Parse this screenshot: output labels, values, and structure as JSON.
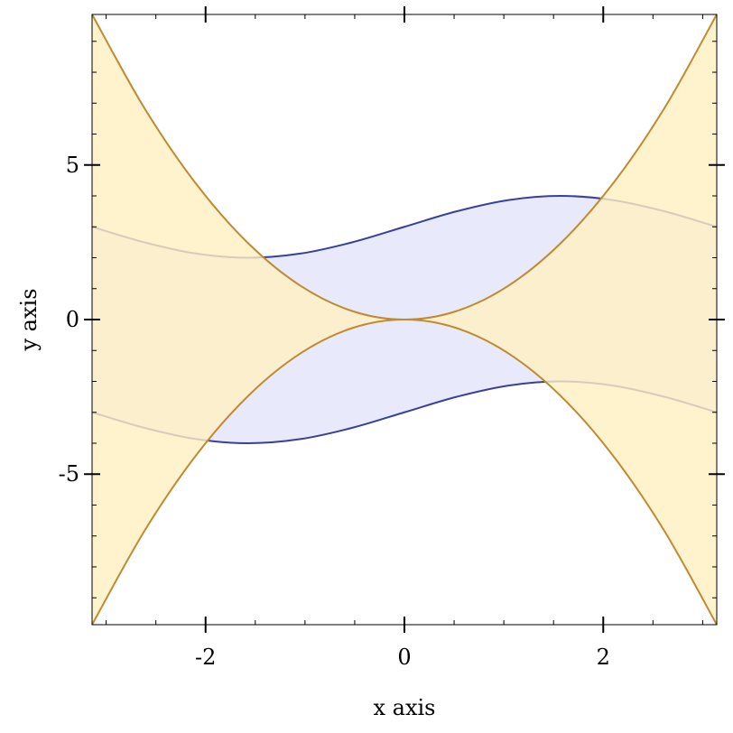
{
  "chart_data": {
    "type": "area",
    "xlabel": "x axis",
    "ylabel": "y axis",
    "xlim": [
      -3.14159,
      3.14159
    ],
    "ylim": [
      -9.8696,
      9.8696
    ],
    "x_ticks": [
      -2,
      0,
      2
    ],
    "x_tick_labels": [
      "-2",
      "0",
      "2"
    ],
    "y_ticks": [
      -5,
      0,
      5
    ],
    "y_tick_labels": [
      "-5",
      "0",
      "5"
    ],
    "grid": false,
    "series": [
      {
        "fill": "#e8eafc",
        "line": "#3a3f9c",
        "upper": [
          [
            -3.1416,
            3.0
          ],
          [
            -2.618,
            2.5
          ],
          [
            -2.0944,
            2.134
          ],
          [
            -1.5708,
            2.0
          ],
          [
            -1.0472,
            2.134
          ],
          [
            -0.5236,
            2.5
          ],
          [
            0.0,
            3.0
          ],
          [
            0.5236,
            3.5
          ],
          [
            1.0472,
            3.866
          ],
          [
            1.5708,
            4.0
          ],
          [
            2.0944,
            3.866
          ],
          [
            2.618,
            3.5
          ],
          [
            3.1416,
            3.0
          ]
        ],
        "lower": [
          [
            -3.1416,
            -3.0
          ],
          [
            -2.618,
            -3.5
          ],
          [
            -2.0944,
            -3.866
          ],
          [
            -1.5708,
            -4.0
          ],
          [
            -1.0472,
            -3.866
          ],
          [
            -0.5236,
            -3.5
          ],
          [
            0.0,
            -3.0
          ],
          [
            0.5236,
            -2.5
          ],
          [
            1.0472,
            -2.134
          ],
          [
            1.5708,
            -2.0
          ],
          [
            2.0944,
            -2.134
          ],
          [
            2.618,
            -2.5
          ],
          [
            3.1416,
            -3.0
          ]
        ]
      },
      {
        "fill": "#fff0c2",
        "line": "#c08a30",
        "upper": [
          [
            -3.1416,
            9.8696
          ],
          [
            -2.618,
            6.854
          ],
          [
            -2.0944,
            4.386
          ],
          [
            -1.5708,
            2.467
          ],
          [
            -1.0472,
            1.097
          ],
          [
            -0.5236,
            0.274
          ],
          [
            0.0,
            0.0
          ],
          [
            0.5236,
            0.274
          ],
          [
            1.0472,
            1.097
          ],
          [
            1.5708,
            2.467
          ],
          [
            2.0944,
            4.386
          ],
          [
            2.618,
            6.854
          ],
          [
            3.1416,
            9.8696
          ]
        ],
        "lower": [
          [
            -3.1416,
            -9.8696
          ],
          [
            -2.618,
            -6.854
          ],
          [
            -2.0944,
            -4.386
          ],
          [
            -1.5708,
            -2.467
          ],
          [
            -1.0472,
            -1.097
          ],
          [
            -0.5236,
            -0.274
          ],
          [
            0.0,
            0.0
          ],
          [
            0.5236,
            -0.274
          ],
          [
            1.0472,
            -1.097
          ],
          [
            1.5708,
            -2.467
          ],
          [
            2.0944,
            -4.386
          ],
          [
            2.618,
            -6.854
          ],
          [
            3.1416,
            -9.8696
          ]
        ]
      }
    ]
  }
}
